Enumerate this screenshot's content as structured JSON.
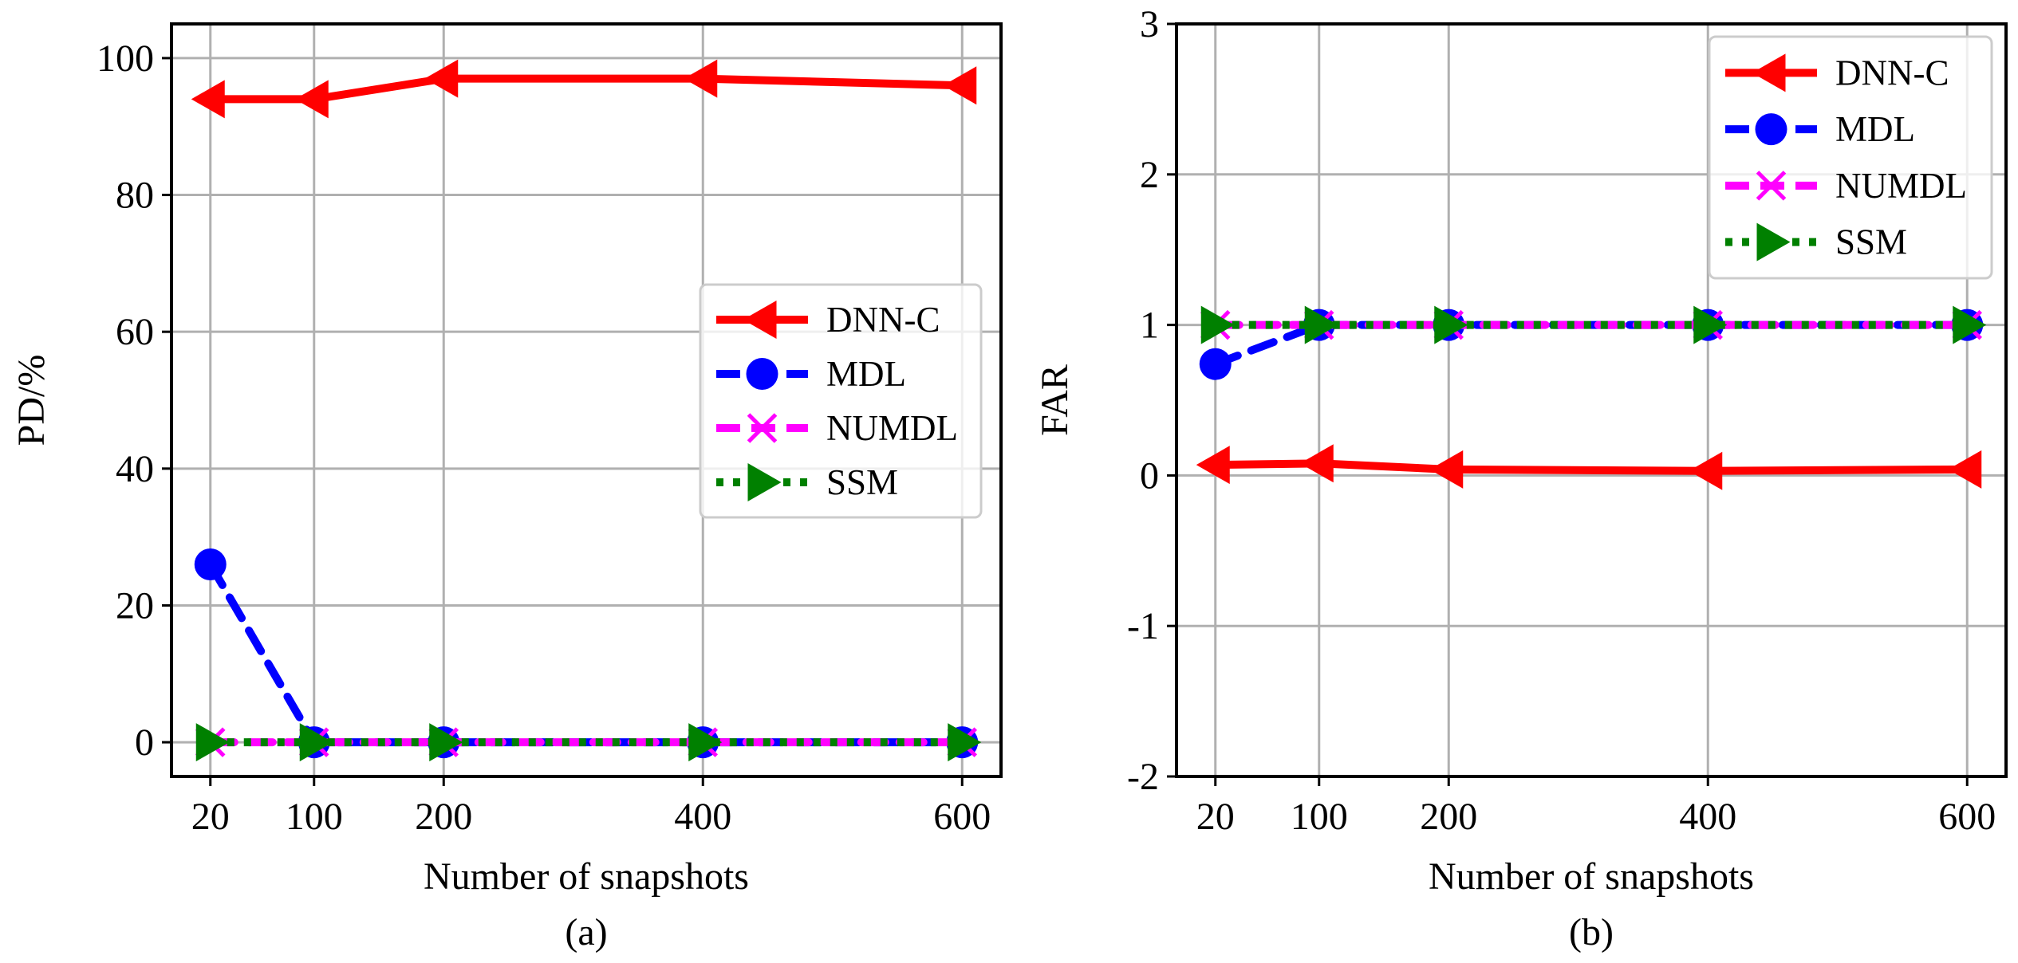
{
  "chart_data": [
    {
      "type": "line",
      "panel_label": "(a)",
      "xlabel": "Number of snapshots",
      "ylabel": "PD/%",
      "categories": [
        "20",
        "100",
        "200",
        "400",
        "600"
      ],
      "x": [
        20,
        100,
        200,
        400,
        600
      ],
      "xlim": [
        -10,
        630
      ],
      "ylim": [
        -5,
        105
      ],
      "yticks": [
        0,
        20,
        40,
        60,
        80,
        100
      ],
      "ytick_labels": [
        "0",
        "20",
        "40",
        "60",
        "80",
        "100"
      ],
      "grid": true,
      "legend_position": "center-right",
      "series": [
        {
          "name": "DNN-C",
          "values": [
            94,
            94,
            97,
            97,
            96
          ],
          "color": "#ff0000",
          "marker": "triangle-left",
          "line": "solid"
        },
        {
          "name": "MDL",
          "values": [
            26,
            0,
            0,
            0,
            0
          ],
          "color": "#0000ff",
          "marker": "circle",
          "line": "dashed"
        },
        {
          "name": "NUMDL",
          "values": [
            0,
            0,
            0,
            0,
            0
          ],
          "color": "#ff00ff",
          "marker": "x",
          "line": "dashed"
        },
        {
          "name": "SSM",
          "values": [
            0,
            0,
            0,
            0,
            0
          ],
          "color": "#008000",
          "marker": "triangle-right",
          "line": "dotted"
        }
      ]
    },
    {
      "type": "line",
      "panel_label": "(b)",
      "xlabel": "Number of snapshots",
      "ylabel": "FAR",
      "categories": [
        "20",
        "100",
        "200",
        "400",
        "600"
      ],
      "x": [
        20,
        100,
        200,
        400,
        600
      ],
      "xlim": [
        -10,
        630
      ],
      "ylim": [
        -2,
        3
      ],
      "yticks": [
        -2,
        -1,
        0,
        1,
        2,
        3
      ],
      "ytick_labels": [
        "-2",
        "-1",
        "0",
        "1",
        "2",
        "3"
      ],
      "grid": true,
      "legend_position": "top-right",
      "series": [
        {
          "name": "DNN-C",
          "values": [
            0.07,
            0.08,
            0.04,
            0.03,
            0.04
          ],
          "color": "#ff0000",
          "marker": "triangle-left",
          "line": "solid"
        },
        {
          "name": "MDL",
          "values": [
            0.74,
            1,
            1,
            1,
            1
          ],
          "color": "#0000ff",
          "marker": "circle",
          "line": "dashed"
        },
        {
          "name": "NUMDL",
          "values": [
            1,
            1,
            1,
            1,
            1
          ],
          "color": "#ff00ff",
          "marker": "x",
          "line": "dashed"
        },
        {
          "name": "SSM",
          "values": [
            1,
            1,
            1,
            1,
            1
          ],
          "color": "#008000",
          "marker": "triangle-right",
          "line": "dotted"
        }
      ]
    }
  ]
}
